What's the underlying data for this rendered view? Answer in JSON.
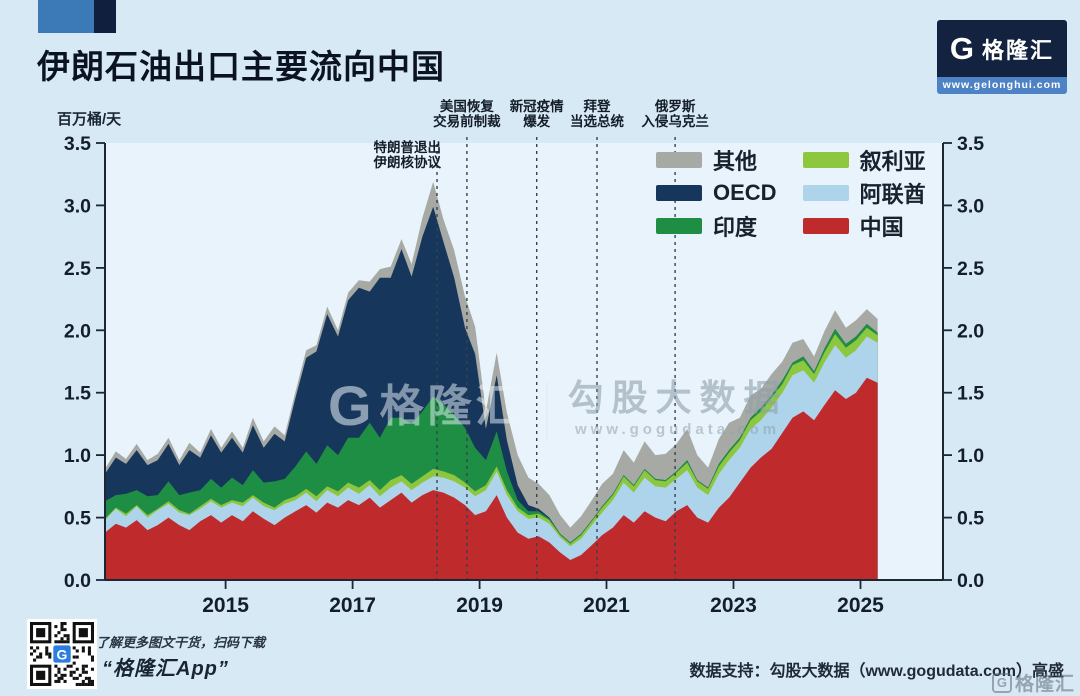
{
  "header": {
    "title": "伊朗石油出口主要流向中国",
    "logo": {
      "mark": "G",
      "brand": "格隆汇",
      "url": "www.gelonghui.com"
    }
  },
  "chart_data": {
    "type": "area",
    "stacked": true,
    "unit_label": "百万桶/天",
    "ylim": [
      0,
      3.5
    ],
    "ytick_step": 0.5,
    "xticks": [
      2015,
      2017,
      2019,
      2021,
      2023,
      2025
    ],
    "x_range": [
      2013.1,
      2026.3
    ],
    "grid": false,
    "legend_position": "upper right, two columns",
    "legend_columns": [
      [
        "其他",
        "OECD",
        "印度"
      ],
      [
        "叙利亚",
        "阿联酋",
        "中国"
      ]
    ],
    "x": [
      2013.1,
      2013.27,
      2013.43,
      2013.6,
      2013.77,
      2013.93,
      2014.1,
      2014.27,
      2014.43,
      2014.6,
      2014.77,
      2014.93,
      2015.1,
      2015.27,
      2015.43,
      2015.6,
      2015.77,
      2015.93,
      2016.1,
      2016.27,
      2016.43,
      2016.6,
      2016.77,
      2016.93,
      2017.1,
      2017.27,
      2017.43,
      2017.6,
      2017.77,
      2017.93,
      2018.1,
      2018.27,
      2018.43,
      2018.6,
      2018.77,
      2018.93,
      2019.1,
      2019.27,
      2019.43,
      2019.6,
      2019.77,
      2019.93,
      2020.1,
      2020.27,
      2020.43,
      2020.6,
      2020.77,
      2020.93,
      2021.1,
      2021.27,
      2021.43,
      2021.6,
      2021.77,
      2021.93,
      2022.1,
      2022.27,
      2022.43,
      2022.6,
      2022.77,
      2022.93,
      2023.1,
      2023.27,
      2023.43,
      2023.6,
      2023.77,
      2023.93,
      2024.1,
      2024.27,
      2024.43,
      2024.6,
      2024.77,
      2024.93,
      2025.1,
      2025.27
    ],
    "series": [
      {
        "name": "中国",
        "color": "#bf2b2d",
        "values": [
          0.38,
          0.45,
          0.42,
          0.48,
          0.4,
          0.44,
          0.5,
          0.44,
          0.4,
          0.47,
          0.52,
          0.46,
          0.52,
          0.47,
          0.55,
          0.49,
          0.44,
          0.5,
          0.55,
          0.6,
          0.54,
          0.62,
          0.58,
          0.64,
          0.6,
          0.66,
          0.58,
          0.64,
          0.7,
          0.62,
          0.68,
          0.72,
          0.7,
          0.66,
          0.6,
          0.52,
          0.55,
          0.68,
          0.5,
          0.38,
          0.33,
          0.35,
          0.3,
          0.22,
          0.16,
          0.2,
          0.28,
          0.36,
          0.42,
          0.52,
          0.46,
          0.55,
          0.5,
          0.47,
          0.55,
          0.6,
          0.5,
          0.46,
          0.58,
          0.66,
          0.78,
          0.9,
          0.98,
          1.05,
          1.18,
          1.3,
          1.35,
          1.28,
          1.4,
          1.52,
          1.45,
          1.5,
          1.62,
          1.58
        ]
      },
      {
        "name": "阿联酋",
        "color": "#aed4ec",
        "values": [
          0.1,
          0.12,
          0.09,
          0.11,
          0.1,
          0.12,
          0.11,
          0.1,
          0.12,
          0.1,
          0.11,
          0.12,
          0.1,
          0.12,
          0.11,
          0.1,
          0.12,
          0.11,
          0.09,
          0.1,
          0.09,
          0.1,
          0.09,
          0.1,
          0.09,
          0.1,
          0.09,
          0.1,
          0.09,
          0.1,
          0.1,
          0.11,
          0.12,
          0.13,
          0.14,
          0.15,
          0.17,
          0.19,
          0.18,
          0.17,
          0.16,
          0.15,
          0.15,
          0.12,
          0.11,
          0.13,
          0.16,
          0.18,
          0.22,
          0.26,
          0.24,
          0.27,
          0.25,
          0.27,
          0.26,
          0.28,
          0.24,
          0.22,
          0.27,
          0.3,
          0.28,
          0.31,
          0.3,
          0.33,
          0.32,
          0.34,
          0.33,
          0.3,
          0.34,
          0.36,
          0.33,
          0.34,
          0.33,
          0.32
        ]
      },
      {
        "name": "叙利亚",
        "color": "#8dc63f",
        "values": [
          0.01,
          0.01,
          0.02,
          0.01,
          0.02,
          0.01,
          0.02,
          0.02,
          0.01,
          0.02,
          0.02,
          0.02,
          0.02,
          0.03,
          0.02,
          0.03,
          0.02,
          0.03,
          0.03,
          0.03,
          0.04,
          0.03,
          0.04,
          0.04,
          0.05,
          0.04,
          0.05,
          0.06,
          0.05,
          0.05,
          0.05,
          0.06,
          0.05,
          0.05,
          0.04,
          0.04,
          0.04,
          0.04,
          0.04,
          0.03,
          0.03,
          0.03,
          0.03,
          0.02,
          0.02,
          0.03,
          0.03,
          0.04,
          0.04,
          0.05,
          0.05,
          0.06,
          0.05,
          0.05,
          0.05,
          0.06,
          0.05,
          0.05,
          0.06,
          0.06,
          0.06,
          0.07,
          0.07,
          0.08,
          0.07,
          0.08,
          0.08,
          0.07,
          0.08,
          0.09,
          0.08,
          0.08,
          0.07,
          0.06
        ]
      },
      {
        "name": "印度",
        "color": "#1f8e45",
        "values": [
          0.14,
          0.1,
          0.16,
          0.12,
          0.15,
          0.11,
          0.16,
          0.12,
          0.17,
          0.13,
          0.16,
          0.14,
          0.18,
          0.14,
          0.2,
          0.16,
          0.21,
          0.17,
          0.24,
          0.3,
          0.26,
          0.33,
          0.29,
          0.36,
          0.4,
          0.46,
          0.42,
          0.5,
          0.46,
          0.48,
          0.52,
          0.58,
          0.54,
          0.48,
          0.44,
          0.35,
          0.2,
          0.28,
          0.15,
          0.06,
          0.03,
          0.02,
          0.01,
          0.01,
          0.01,
          0.01,
          0.01,
          0.01,
          0.01,
          0.01,
          0.01,
          0.01,
          0.01,
          0.01,
          0.01,
          0.02,
          0.01,
          0.01,
          0.02,
          0.02,
          0.02,
          0.02,
          0.03,
          0.02,
          0.03,
          0.02,
          0.03,
          0.02,
          0.03,
          0.04,
          0.03,
          0.03,
          0.03,
          0.02
        ]
      },
      {
        "name": "OECD",
        "color": "#16365c",
        "values": [
          0.22,
          0.3,
          0.24,
          0.32,
          0.25,
          0.28,
          0.3,
          0.24,
          0.34,
          0.26,
          0.35,
          0.28,
          0.32,
          0.26,
          0.36,
          0.28,
          0.38,
          0.3,
          0.55,
          0.75,
          0.9,
          1.05,
          0.95,
          1.1,
          1.2,
          1.05,
          1.28,
          1.12,
          1.35,
          1.18,
          1.4,
          1.52,
          1.3,
          1.1,
          0.8,
          0.75,
          0.25,
          0.45,
          0.25,
          0.12,
          0.05,
          0.02,
          0.01,
          0,
          0,
          0,
          0,
          0,
          0,
          0,
          0,
          0,
          0,
          0,
          0,
          0,
          0,
          0,
          0,
          0,
          0,
          0,
          0,
          0,
          0,
          0,
          0,
          0,
          0,
          0,
          0,
          0,
          0,
          0
        ]
      },
      {
        "name": "其他",
        "color": "#a7a9a4",
        "values": [
          0.04,
          0.05,
          0.04,
          0.05,
          0.04,
          0.05,
          0.05,
          0.04,
          0.06,
          0.04,
          0.05,
          0.04,
          0.05,
          0.04,
          0.06,
          0.05,
          0.06,
          0.05,
          0.05,
          0.06,
          0.05,
          0.06,
          0.05,
          0.06,
          0.06,
          0.08,
          0.07,
          0.09,
          0.08,
          0.1,
          0.15,
          0.2,
          0.18,
          0.22,
          0.25,
          0.22,
          0.14,
          0.18,
          0.22,
          0.24,
          0.22,
          0.2,
          0.18,
          0.15,
          0.12,
          0.14,
          0.16,
          0.18,
          0.16,
          0.2,
          0.18,
          0.22,
          0.19,
          0.21,
          0.22,
          0.25,
          0.2,
          0.16,
          0.2,
          0.22,
          0.16,
          0.18,
          0.15,
          0.17,
          0.15,
          0.16,
          0.14,
          0.12,
          0.14,
          0.15,
          0.13,
          0.13,
          0.12,
          0.11
        ]
      }
    ],
    "events": [
      {
        "lines": [
          "特朗普退出",
          "伊朗核协议"
        ],
        "year": 2018.33,
        "align": "end"
      },
      {
        "lines": [
          "美国恢复",
          "交易前制裁"
        ],
        "year": 2018.8,
        "align": "middle"
      },
      {
        "lines": [
          "新冠疫情",
          "爆发"
        ],
        "year": 2019.9,
        "align": "middle"
      },
      {
        "lines": [
          "拜登",
          "当选总统"
        ],
        "year": 2020.85,
        "align": "middle"
      },
      {
        "lines": [
          "俄罗斯",
          "入侵乌克兰"
        ],
        "year": 2022.08,
        "align": "middle"
      }
    ]
  },
  "watermark": {
    "mark": "G",
    "brand": "格隆汇",
    "name": "勾股大数据",
    "url": "www.gogudata.com"
  },
  "footer": {
    "qr_hint": "了解更多图文干货，扫码下载",
    "app_name": "“格隆汇App”",
    "source": "数据支持：勾股大数据（www.gogudata.com）高盛",
    "corner_mark": "G",
    "corner_brand": "格隆汇"
  }
}
